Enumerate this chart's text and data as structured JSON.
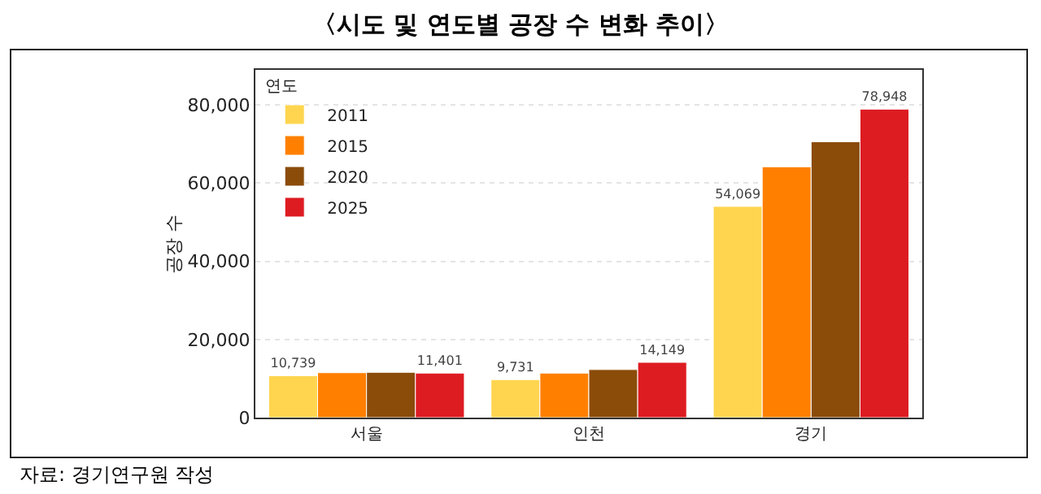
{
  "chart_data": {
    "type": "bar",
    "title": "〈시도 및 연도별 공장 수 변화 추이〉",
    "ylabel": "공장 수",
    "legend_title": "연도",
    "annotations": [
      "자료: 경기연구원 작성"
    ],
    "categories": [
      "서울",
      "인천",
      "경기"
    ],
    "series": [
      {
        "name": "2011",
        "color": "#ffd54f",
        "values": [
          10739,
          9731,
          54069
        ],
        "value_labels": [
          "10,739",
          "9,731",
          "54,069"
        ]
      },
      {
        "name": "2015",
        "color": "#ff8000",
        "values": [
          11500,
          11400,
          64200
        ],
        "value_labels": [
          null,
          null,
          null
        ]
      },
      {
        "name": "2020",
        "color": "#8b4c0a",
        "values": [
          11600,
          12300,
          70600
        ],
        "value_labels": [
          null,
          null,
          null
        ]
      },
      {
        "name": "2025",
        "color": "#dd1c22",
        "values": [
          11401,
          14149,
          78948
        ],
        "value_labels": [
          "11,401",
          "14,149",
          "78,948"
        ]
      }
    ],
    "ylim": [
      0,
      89000
    ],
    "yticks": [
      {
        "value": 0,
        "label": "0"
      },
      {
        "value": 20000,
        "label": "20,000"
      },
      {
        "value": 40000,
        "label": "40,000"
      },
      {
        "value": 60000,
        "label": "60,000"
      },
      {
        "value": 80000,
        "label": "80,000"
      }
    ],
    "grid": "y",
    "legend": "top left"
  }
}
